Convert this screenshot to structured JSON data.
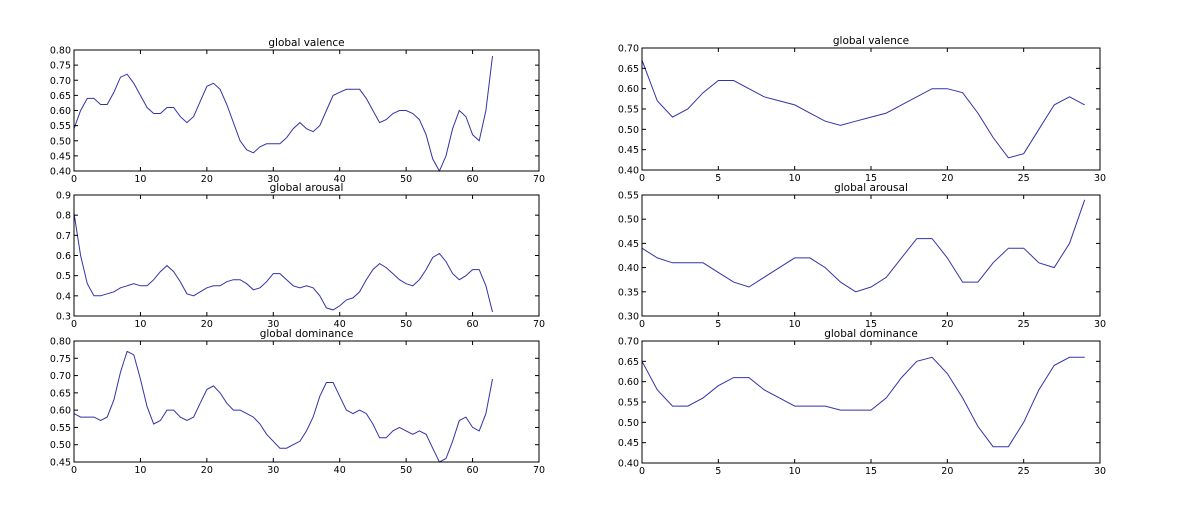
{
  "colors": {
    "line": "#3333a8",
    "axis": "#000000"
  },
  "chart_data": [
    {
      "type": "line",
      "title": "global valence",
      "xlim": [
        0,
        70
      ],
      "ylim": [
        0.4,
        0.8
      ],
      "xticks": [
        "0",
        "10",
        "20",
        "30",
        "40",
        "50",
        "60",
        "70"
      ],
      "yticks": [
        "0.40",
        "0.45",
        "0.50",
        "0.55",
        "0.60",
        "0.65",
        "0.70",
        "0.75",
        "0.80"
      ],
      "x": [
        0,
        1,
        2,
        3,
        4,
        5,
        6,
        7,
        8,
        9,
        10,
        11,
        12,
        13,
        14,
        15,
        16,
        17,
        18,
        19,
        20,
        21,
        22,
        23,
        24,
        25,
        26,
        27,
        28,
        29,
        30,
        31,
        32,
        33,
        34,
        35,
        36,
        37,
        38,
        39,
        40,
        41,
        42,
        43,
        44,
        45,
        46,
        47,
        48,
        49,
        50,
        51,
        52,
        53,
        54,
        55,
        56,
        57,
        58,
        59,
        60,
        61,
        62,
        63
      ],
      "y": [
        0.54,
        0.6,
        0.64,
        0.64,
        0.62,
        0.62,
        0.66,
        0.71,
        0.72,
        0.69,
        0.65,
        0.61,
        0.59,
        0.59,
        0.61,
        0.61,
        0.58,
        0.56,
        0.58,
        0.63,
        0.68,
        0.69,
        0.67,
        0.62,
        0.56,
        0.5,
        0.47,
        0.46,
        0.48,
        0.49,
        0.49,
        0.49,
        0.51,
        0.54,
        0.56,
        0.54,
        0.53,
        0.55,
        0.6,
        0.65,
        0.66,
        0.67,
        0.67,
        0.67,
        0.64,
        0.6,
        0.56,
        0.57,
        0.59,
        0.6,
        0.6,
        0.59,
        0.57,
        0.52,
        0.44,
        0.4,
        0.45,
        0.54,
        0.6,
        0.58,
        0.52,
        0.5,
        0.6,
        0.78
      ]
    },
    {
      "type": "line",
      "title": "global arousal",
      "xlim": [
        0,
        70
      ],
      "ylim": [
        0.3,
        0.9
      ],
      "xticks": [
        "0",
        "10",
        "20",
        "30",
        "40",
        "50",
        "60",
        "70"
      ],
      "yticks": [
        "0.3",
        "0.4",
        "0.5",
        "0.6",
        "0.7",
        "0.8",
        "0.9"
      ],
      "x": [
        0,
        1,
        2,
        3,
        4,
        5,
        6,
        7,
        8,
        9,
        10,
        11,
        12,
        13,
        14,
        15,
        16,
        17,
        18,
        19,
        20,
        21,
        22,
        23,
        24,
        25,
        26,
        27,
        28,
        29,
        30,
        31,
        32,
        33,
        34,
        35,
        36,
        37,
        38,
        39,
        40,
        41,
        42,
        43,
        44,
        45,
        46,
        47,
        48,
        49,
        50,
        51,
        52,
        53,
        54,
        55,
        56,
        57,
        58,
        59,
        60,
        61,
        62,
        63
      ],
      "y": [
        0.81,
        0.6,
        0.46,
        0.4,
        0.4,
        0.41,
        0.42,
        0.44,
        0.45,
        0.46,
        0.45,
        0.45,
        0.48,
        0.52,
        0.55,
        0.52,
        0.47,
        0.41,
        0.4,
        0.42,
        0.44,
        0.45,
        0.45,
        0.47,
        0.48,
        0.48,
        0.46,
        0.43,
        0.44,
        0.47,
        0.51,
        0.51,
        0.48,
        0.45,
        0.44,
        0.45,
        0.44,
        0.4,
        0.34,
        0.33,
        0.35,
        0.38,
        0.39,
        0.42,
        0.48,
        0.53,
        0.56,
        0.54,
        0.51,
        0.48,
        0.46,
        0.45,
        0.48,
        0.53,
        0.59,
        0.61,
        0.57,
        0.51,
        0.48,
        0.5,
        0.53,
        0.53,
        0.45,
        0.32
      ]
    },
    {
      "type": "line",
      "title": "global dominance",
      "xlim": [
        0,
        70
      ],
      "ylim": [
        0.45,
        0.8
      ],
      "xticks": [
        "0",
        "10",
        "20",
        "30",
        "40",
        "50",
        "60",
        "70"
      ],
      "yticks": [
        "0.45",
        "0.50",
        "0.55",
        "0.60",
        "0.65",
        "0.70",
        "0.75",
        "0.80"
      ],
      "x": [
        0,
        1,
        2,
        3,
        4,
        5,
        6,
        7,
        8,
        9,
        10,
        11,
        12,
        13,
        14,
        15,
        16,
        17,
        18,
        19,
        20,
        21,
        22,
        23,
        24,
        25,
        26,
        27,
        28,
        29,
        30,
        31,
        32,
        33,
        34,
        35,
        36,
        37,
        38,
        39,
        40,
        41,
        42,
        43,
        44,
        45,
        46,
        47,
        48,
        49,
        50,
        51,
        52,
        53,
        54,
        55,
        56,
        57,
        58,
        59,
        60,
        61,
        62,
        63
      ],
      "y": [
        0.59,
        0.58,
        0.58,
        0.58,
        0.57,
        0.58,
        0.63,
        0.71,
        0.77,
        0.76,
        0.69,
        0.61,
        0.56,
        0.57,
        0.6,
        0.6,
        0.58,
        0.57,
        0.58,
        0.62,
        0.66,
        0.67,
        0.65,
        0.62,
        0.6,
        0.6,
        0.59,
        0.58,
        0.56,
        0.53,
        0.51,
        0.49,
        0.49,
        0.5,
        0.51,
        0.54,
        0.58,
        0.64,
        0.68,
        0.68,
        0.64,
        0.6,
        0.59,
        0.6,
        0.59,
        0.56,
        0.52,
        0.52,
        0.54,
        0.55,
        0.54,
        0.53,
        0.54,
        0.53,
        0.49,
        0.45,
        0.46,
        0.51,
        0.57,
        0.58,
        0.55,
        0.54,
        0.59,
        0.69
      ]
    },
    {
      "type": "line",
      "title": "global valence",
      "xlim": [
        0,
        30
      ],
      "ylim": [
        0.4,
        0.7
      ],
      "xticks": [
        "0",
        "5",
        "10",
        "15",
        "20",
        "25",
        "30"
      ],
      "yticks": [
        "0.40",
        "0.45",
        "0.50",
        "0.55",
        "0.60",
        "0.65",
        "0.70"
      ],
      "x": [
        0,
        1,
        2,
        3,
        4,
        5,
        6,
        7,
        8,
        9,
        10,
        11,
        12,
        13,
        14,
        15,
        16,
        17,
        18,
        19,
        20,
        21,
        22,
        23,
        24,
        25,
        26,
        27,
        28,
        29
      ],
      "y": [
        0.67,
        0.57,
        0.53,
        0.55,
        0.59,
        0.62,
        0.62,
        0.6,
        0.58,
        0.57,
        0.56,
        0.54,
        0.52,
        0.51,
        0.52,
        0.53,
        0.54,
        0.56,
        0.58,
        0.6,
        0.6,
        0.59,
        0.54,
        0.48,
        0.43,
        0.44,
        0.5,
        0.56,
        0.58,
        0.56
      ]
    },
    {
      "type": "line",
      "title": "global arousal",
      "xlim": [
        0,
        30
      ],
      "ylim": [
        0.3,
        0.55
      ],
      "xticks": [
        "0",
        "5",
        "10",
        "15",
        "20",
        "25",
        "30"
      ],
      "yticks": [
        "0.30",
        "0.35",
        "0.40",
        "0.45",
        "0.50",
        "0.55"
      ],
      "x": [
        0,
        1,
        2,
        3,
        4,
        5,
        6,
        7,
        8,
        9,
        10,
        11,
        12,
        13,
        14,
        15,
        16,
        17,
        18,
        19,
        20,
        21,
        22,
        23,
        24,
        25,
        26,
        27,
        28,
        29
      ],
      "y": [
        0.44,
        0.42,
        0.41,
        0.41,
        0.41,
        0.39,
        0.37,
        0.36,
        0.38,
        0.4,
        0.42,
        0.42,
        0.4,
        0.37,
        0.35,
        0.36,
        0.38,
        0.42,
        0.46,
        0.46,
        0.42,
        0.37,
        0.37,
        0.41,
        0.44,
        0.44,
        0.41,
        0.4,
        0.45,
        0.54
      ]
    },
    {
      "type": "line",
      "title": "global dominance",
      "xlim": [
        0,
        30
      ],
      "ylim": [
        0.4,
        0.7
      ],
      "xticks": [
        "0",
        "5",
        "10",
        "15",
        "20",
        "25",
        "30"
      ],
      "yticks": [
        "0.40",
        "0.45",
        "0.50",
        "0.55",
        "0.60",
        "0.65",
        "0.70"
      ],
      "x": [
        0,
        1,
        2,
        3,
        4,
        5,
        6,
        7,
        8,
        9,
        10,
        11,
        12,
        13,
        14,
        15,
        16,
        17,
        18,
        19,
        20,
        21,
        22,
        23,
        24,
        25,
        26,
        27,
        28,
        29
      ],
      "y": [
        0.65,
        0.58,
        0.54,
        0.54,
        0.56,
        0.59,
        0.61,
        0.61,
        0.58,
        0.56,
        0.54,
        0.54,
        0.54,
        0.53,
        0.53,
        0.53,
        0.56,
        0.61,
        0.65,
        0.66,
        0.62,
        0.56,
        0.49,
        0.44,
        0.44,
        0.5,
        0.58,
        0.64,
        0.66,
        0.66
      ]
    }
  ]
}
